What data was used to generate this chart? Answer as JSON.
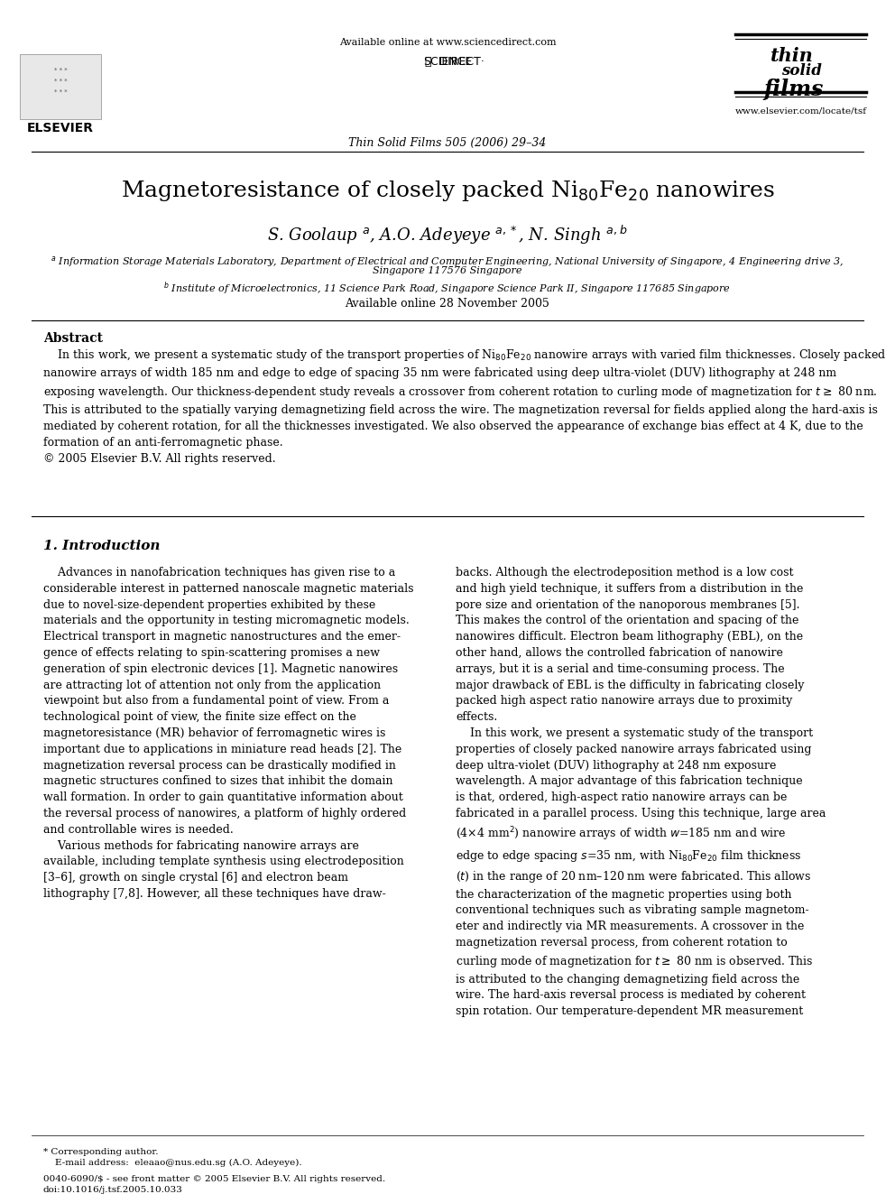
{
  "bg_color": "#ffffff",
  "title": "Magnetoresistance of closely packed Ni$_{80}$Fe$_{20}$ nanowires",
  "authors": "S. Goolaup $^{a}$, A.O. Adeyeye $^{a,*}$, N. Singh $^{a,b}$",
  "affil_a": "$^{a}$ Information Storage Materials Laboratory, Department of Electrical and Computer Engineering, National University of Singapore, 4 Engineering drive 3,",
  "affil_a2": "Singapore 117576 Singapore",
  "affil_b": "$^{b}$ Institute of Microelectronics, 11 Science Park Road, Singapore Science Park II, Singapore 117685 Singapore",
  "available_online": "Available online 28 November 2005",
  "header_url": "Available online at www.sciencedirect.com",
  "journal": "Thin Solid Films 505 (2006) 29–34",
  "journal_url": "www.elsevier.com/locate/tsf",
  "abstract_title": "Abstract",
  "intro_title": "1. Introduction",
  "footer_note": "0040-6090/$ - see front matter © 2005 Elsevier B.V. All rights reserved.",
  "footer_doi": "doi:10.1016/j.tsf.2005.10.033",
  "corresponding1": "* Corresponding author.",
  "corresponding2": "    E-mail address:  eleaao@nus.edu.sg (A.O. Adeyeye).",
  "elsevier_text": "ELSEVIER",
  "copyright": "© 2005 Elsevier B.V. All rights reserved."
}
